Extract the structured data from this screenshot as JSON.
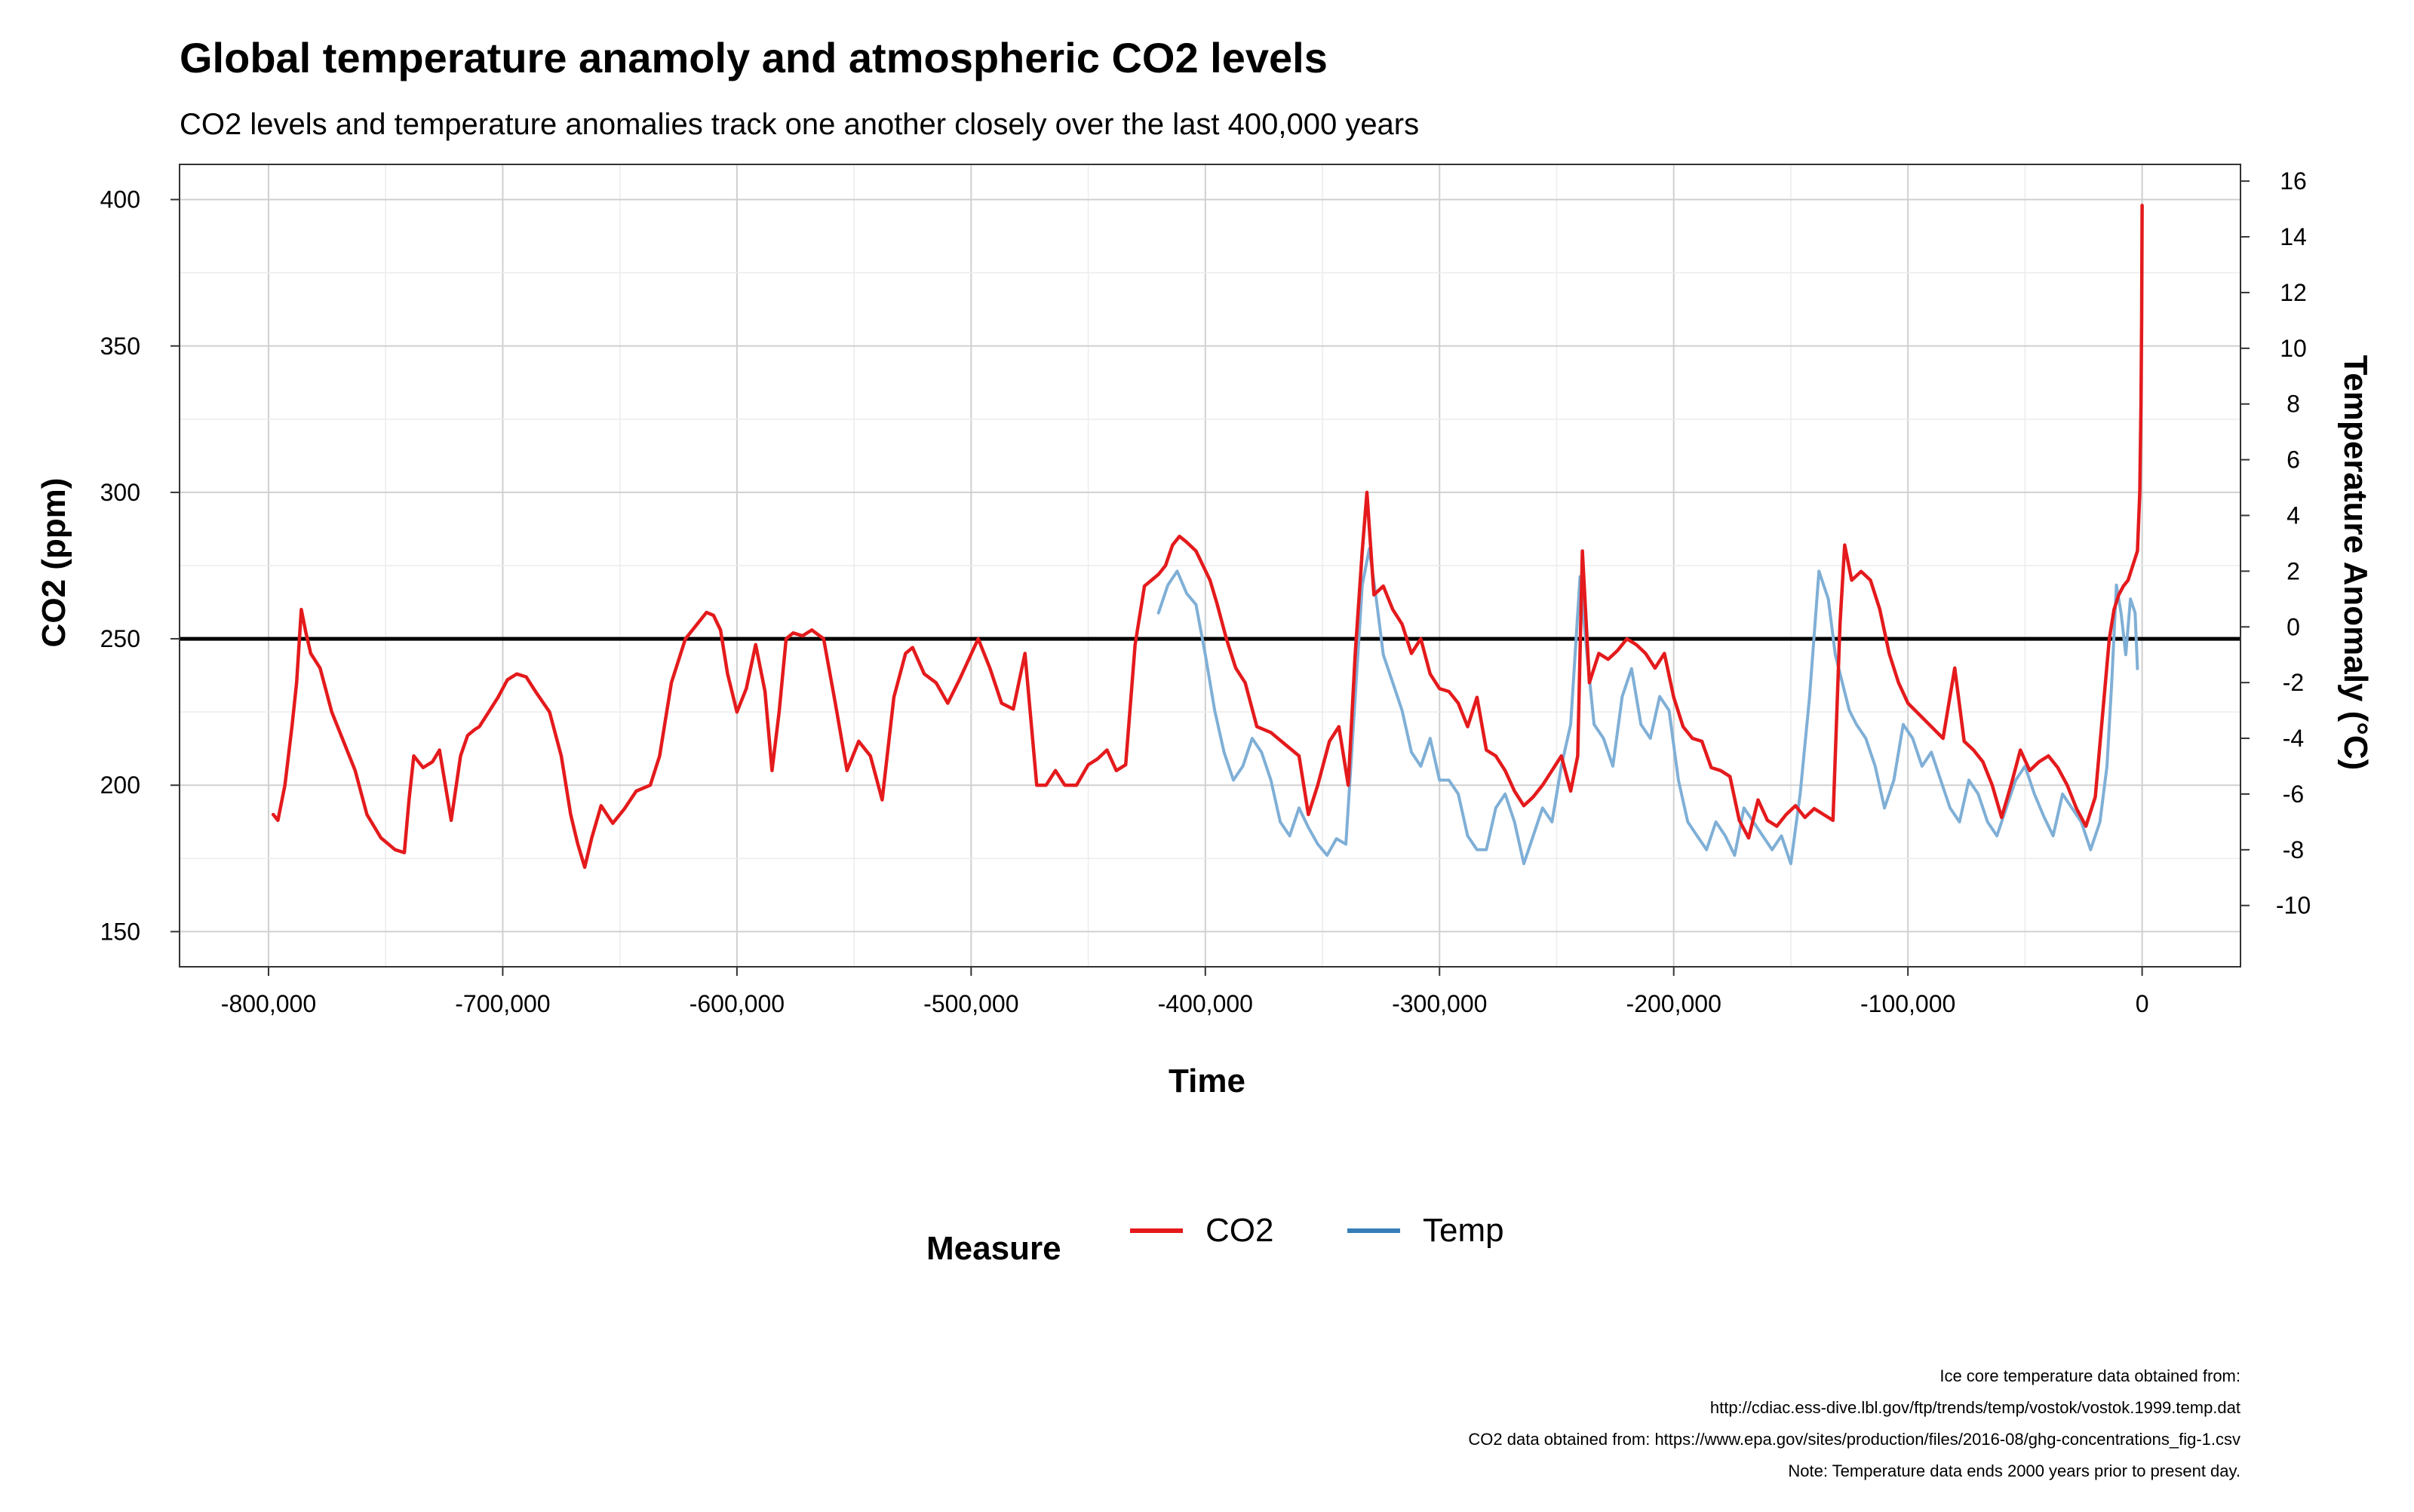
{
  "chart_data": {
    "type": "line",
    "title": "Global temperature anamoly and atmospheric CO2 levels",
    "subtitle": "CO2 levels and temperature anomalies track one another closely over the last 400,000 years",
    "xlabel": "Time",
    "ylabel": "CO2 (ppm)",
    "y2label": "Temperature Anomaly (°C)",
    "xlim": [
      -838000,
      42000
    ],
    "ylim": [
      138,
      412
    ],
    "y2lim": [
      -12.2,
      16.6
    ],
    "x_ticks": [
      -800000,
      -700000,
      -600000,
      -500000,
      -400000,
      -300000,
      -200000,
      -100000,
      0
    ],
    "x_tick_labels": [
      "-800,000",
      "-700,000",
      "-600,000",
      "-500,000",
      "-400,000",
      "-300,000",
      "-200,000",
      "-100,000",
      "0"
    ],
    "y_ticks": [
      150,
      200,
      250,
      300,
      350,
      400
    ],
    "y2_ticks": [
      -10,
      -8,
      -6,
      -4,
      -2,
      0,
      2,
      4,
      6,
      8,
      10,
      12,
      14,
      16
    ],
    "reference_line_y": 250,
    "grid": true,
    "legend": {
      "title": "Measure",
      "position": "bottom",
      "entries": [
        "CO2",
        "Temp"
      ]
    },
    "caption": [
      "Ice core temperature data obtained from:",
      "http://cdiac.ess-dive.lbl.gov/ftp/trends/temp/vostok/vostok.1999.temp.dat",
      "CO2 data obtained from: https://www.epa.gov/sites/production/files/2016-08/ghg-concentrations_fig-1.csv",
      "Note: Temperature data ends 2000 years prior to present day."
    ],
    "series": [
      {
        "name": "CO2",
        "axis": "left",
        "color": "#e41a1c",
        "x": [
          -798000,
          -796000,
          -793000,
          -790000,
          -788000,
          -786000,
          -784000,
          -782000,
          -778000,
          -773000,
          -768000,
          -763000,
          -758000,
          -752000,
          -746000,
          -742000,
          -740000,
          -738000,
          -734000,
          -730000,
          -727000,
          -722000,
          -718000,
          -715000,
          -712000,
          -710000,
          -706000,
          -702000,
          -698000,
          -694000,
          -690000,
          -686000,
          -680000,
          -675000,
          -671000,
          -668000,
          -665000,
          -662000,
          -658000,
          -653000,
          -648000,
          -643000,
          -637000,
          -633000,
          -628000,
          -622000,
          -617000,
          -613000,
          -610000,
          -607000,
          -604000,
          -600000,
          -596000,
          -592000,
          -588000,
          -585000,
          -582000,
          -579000,
          -576000,
          -572000,
          -568000,
          -563000,
          -558000,
          -553000,
          -548000,
          -543000,
          -538000,
          -533000,
          -528000,
          -525000,
          -520000,
          -515000,
          -510000,
          -505000,
          -501000,
          -497000,
          -492000,
          -487000,
          -482000,
          -477000,
          -472000,
          -468000,
          -464000,
          -460000,
          -455000,
          -450000,
          -446000,
          -442000,
          -438000,
          -434000,
          -430000,
          -426000,
          -423000,
          -420000,
          -417000,
          -414000,
          -411000,
          -408000,
          -404000,
          -401000,
          -398000,
          -395000,
          -391000,
          -387000,
          -383000,
          -378000,
          -372000,
          -366000,
          -360000,
          -356000,
          -352000,
          -347000,
          -343000,
          -339000,
          -336000,
          -333000,
          -331000,
          -328000,
          -324000,
          -320000,
          -316000,
          -312000,
          -308000,
          -304000,
          -300000,
          -296000,
          -292000,
          -288000,
          -284000,
          -280000,
          -276000,
          -272000,
          -268000,
          -264000,
          -260000,
          -256000,
          -252000,
          -248000,
          -244000,
          -241000,
          -239000,
          -236000,
          -232000,
          -228000,
          -224000,
          -220000,
          -216000,
          -212000,
          -208000,
          -204000,
          -200000,
          -196000,
          -192000,
          -188000,
          -184000,
          -180000,
          -176000,
          -172000,
          -168000,
          -164000,
          -160000,
          -156000,
          -152000,
          -148000,
          -144000,
          -140000,
          -136000,
          -132000,
          -129000,
          -127000,
          -124000,
          -120000,
          -116000,
          -112000,
          -108000,
          -104000,
          -100000,
          -95000,
          -90000,
          -85000,
          -80000,
          -76000,
          -72000,
          -68000,
          -64000,
          -60000,
          -56000,
          -52000,
          -48000,
          -44000,
          -40000,
          -36000,
          -32000,
          -28000,
          -24000,
          -20000,
          -16000,
          -14000,
          -12000,
          -10000,
          -8000,
          -6000,
          -4000,
          -2000,
          -1000,
          -500,
          -200,
          0
        ],
        "y": [
          190,
          188,
          200,
          220,
          235,
          260,
          252,
          245,
          240,
          225,
          215,
          205,
          190,
          182,
          178,
          177,
          195,
          210,
          206,
          208,
          212,
          188,
          210,
          217,
          219,
          220,
          225,
          230,
          236,
          238,
          237,
          232,
          225,
          210,
          190,
          180,
          172,
          182,
          193,
          187,
          192,
          198,
          200,
          210,
          235,
          250,
          255,
          259,
          258,
          253,
          238,
          225,
          233,
          248,
          232,
          205,
          225,
          250,
          252,
          251,
          253,
          250,
          228,
          205,
          215,
          210,
          195,
          230,
          245,
          247,
          238,
          235,
          228,
          236,
          243,
          250,
          240,
          228,
          226,
          245,
          200,
          200,
          205,
          200,
          200,
          207,
          209,
          212,
          205,
          207,
          248,
          268,
          270,
          272,
          275,
          282,
          285,
          283,
          280,
          275,
          270,
          262,
          250,
          240,
          235,
          220,
          218,
          214,
          210,
          190,
          200,
          215,
          220,
          200,
          245,
          280,
          300,
          265,
          268,
          260,
          255,
          245,
          250,
          238,
          233,
          232,
          228,
          220,
          230,
          212,
          210,
          205,
          198,
          193,
          196,
          200,
          205,
          210,
          198,
          210,
          280,
          235,
          245,
          243,
          246,
          250,
          248,
          245,
          240,
          245,
          230,
          220,
          216,
          215,
          206,
          205,
          203,
          188,
          182,
          195,
          188,
          186,
          190,
          193,
          189,
          192,
          190,
          188,
          255,
          282,
          270,
          273,
          270,
          260,
          245,
          235,
          228,
          224,
          220,
          216,
          240,
          215,
          212,
          208,
          200,
          189,
          200,
          212,
          205,
          208,
          210,
          206,
          200,
          192,
          186,
          196,
          232,
          250,
          260,
          265,
          268,
          270,
          275,
          280,
          300,
          330,
          360,
          398
        ]
      },
      {
        "name": "Temp",
        "axis": "right",
        "color": "#7fafd6",
        "x": [
          -420000,
          -416000,
          -412000,
          -408000,
          -404000,
          -400000,
          -396000,
          -392000,
          -388000,
          -384000,
          -380000,
          -376000,
          -372000,
          -368000,
          -364000,
          -360000,
          -356000,
          -352000,
          -348000,
          -344000,
          -340000,
          -336000,
          -333000,
          -330000,
          -327000,
          -324000,
          -320000,
          -316000,
          -312000,
          -308000,
          -304000,
          -300000,
          -296000,
          -292000,
          -288000,
          -284000,
          -280000,
          -276000,
          -272000,
          -268000,
          -264000,
          -260000,
          -256000,
          -252000,
          -248000,
          -244000,
          -240000,
          -237000,
          -234000,
          -230000,
          -226000,
          -222000,
          -218000,
          -214000,
          -210000,
          -206000,
          -202000,
          -198000,
          -194000,
          -190000,
          -186000,
          -182000,
          -178000,
          -174000,
          -170000,
          -166000,
          -162000,
          -158000,
          -154000,
          -150000,
          -146000,
          -142000,
          -138000,
          -134000,
          -131000,
          -128000,
          -125000,
          -122000,
          -118000,
          -114000,
          -110000,
          -106000,
          -102000,
          -98000,
          -94000,
          -90000,
          -86000,
          -82000,
          -78000,
          -74000,
          -70000,
          -66000,
          -62000,
          -58000,
          -54000,
          -50000,
          -46000,
          -42000,
          -38000,
          -34000,
          -30000,
          -26000,
          -22000,
          -18000,
          -15000,
          -13000,
          -11000,
          -9000,
          -7000,
          -5000,
          -3000,
          -2000
        ],
        "y": [
          0.5,
          1.5,
          2.0,
          1.2,
          0.8,
          -1.0,
          -3.0,
          -4.5,
          -5.5,
          -5.0,
          -4.0,
          -4.5,
          -5.5,
          -7.0,
          -7.5,
          -6.5,
          -7.2,
          -7.8,
          -8.2,
          -7.6,
          -7.8,
          -2.5,
          1.5,
          2.8,
          1.0,
          -1.0,
          -2.0,
          -3.0,
          -4.5,
          -5.0,
          -4.0,
          -5.5,
          -5.5,
          -6.0,
          -7.5,
          -8.0,
          -8.0,
          -6.5,
          -6.0,
          -7.0,
          -8.5,
          -7.5,
          -6.5,
          -7.0,
          -5.0,
          -3.5,
          1.8,
          -1.0,
          -3.5,
          -4.0,
          -5.0,
          -2.5,
          -1.5,
          -3.5,
          -4.0,
          -2.5,
          -3.0,
          -5.5,
          -7.0,
          -7.5,
          -8.0,
          -7.0,
          -7.5,
          -8.2,
          -6.5,
          -7.0,
          -7.5,
          -8.0,
          -7.5,
          -8.5,
          -6.0,
          -2.5,
          2.0,
          1.0,
          -1.0,
          -2.0,
          -3.0,
          -3.5,
          -4.0,
          -5.0,
          -6.5,
          -5.5,
          -3.5,
          -4.0,
          -5.0,
          -4.5,
          -5.5,
          -6.5,
          -7.0,
          -5.5,
          -6.0,
          -7.0,
          -7.5,
          -6.5,
          -5.5,
          -5.0,
          -6.0,
          -6.8,
          -7.5,
          -6.0,
          -6.5,
          -7.0,
          -8.0,
          -7.0,
          -5.0,
          -2.0,
          1.5,
          0.5,
          -1.0,
          1.0,
          0.5,
          -1.5
        ]
      }
    ]
  }
}
